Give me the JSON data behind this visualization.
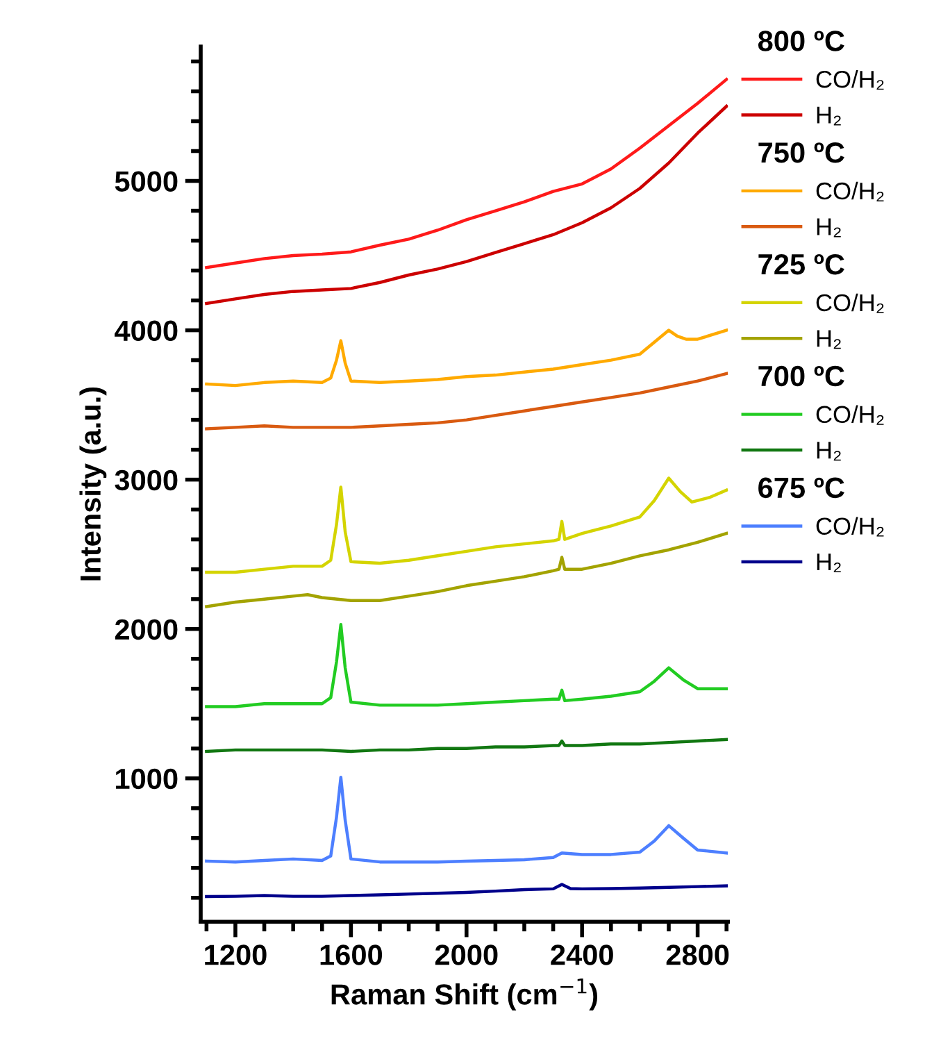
{
  "chart_data": {
    "type": "line",
    "xlabel": "Raman Shift (cm$^{−1}$)",
    "ylabel": "Intensity (a.u.)",
    "xlim": [
      1080,
      2905
    ],
    "ylim": [
      40,
      5900
    ],
    "xticks": [
      {
        "value": 1100,
        "label": null
      },
      1200,
      {
        "value": 1300,
        "label": null
      },
      {
        "value": 1400,
        "label": null
      },
      {
        "value": 1500,
        "label": null
      },
      1600,
      {
        "value": 1700,
        "label": null
      },
      {
        "value": 1800,
        "label": null
      },
      {
        "value": 1900,
        "label": null
      },
      2000,
      {
        "value": 2100,
        "label": null
      },
      {
        "value": 2200,
        "label": null
      },
      {
        "value": 2300,
        "label": null
      },
      2400,
      {
        "value": 2500,
        "label": null
      },
      {
        "value": 2600,
        "label": null
      },
      {
        "value": 2700,
        "label": null
      },
      2800,
      {
        "value": 2900,
        "label": null
      }
    ],
    "yticks": [
      {
        "value": 200,
        "label": null
      },
      {
        "value": 400,
        "label": null
      },
      {
        "value": 600,
        "label": null
      },
      {
        "value": 800,
        "label": null
      },
      1000,
      {
        "value": 1200,
        "label": null
      },
      {
        "value": 1400,
        "label": null
      },
      {
        "value": 1600,
        "label": null
      },
      {
        "value": 1800,
        "label": null
      },
      2000,
      {
        "value": 2200,
        "label": null
      },
      {
        "value": 2400,
        "label": null
      },
      {
        "value": 2600,
        "label": null
      },
      {
        "value": 2800,
        "label": null
      },
      3000,
      {
        "value": 3200,
        "label": null
      },
      {
        "value": 3400,
        "label": null
      },
      {
        "value": 3600,
        "label": null
      },
      {
        "value": 3800,
        "label": null
      },
      4000,
      {
        "value": 4200,
        "label": null
      },
      {
        "value": 4400,
        "label": null
      },
      {
        "value": 4600,
        "label": null
      },
      {
        "value": 4800,
        "label": null
      },
      5000,
      {
        "value": 5200,
        "label": null
      },
      {
        "value": 5400,
        "label": null
      },
      {
        "value": 5600,
        "label": null
      },
      {
        "value": 5800,
        "label": null
      }
    ],
    "grid": false,
    "legend": "right",
    "marker": "none",
    "line_style": "solid",
    "annotations": [
      "800 ºC",
      "750 ºC",
      "725 ºC",
      "700 ºC",
      "675 ºC"
    ],
    "series": [
      {
        "name": "CO/H₂",
        "color": "#ff1a1a",
        "x": [
          1100,
          1200,
          1300,
          1400,
          1500,
          1600,
          1700,
          1800,
          1900,
          2000,
          2100,
          2200,
          2300,
          2400,
          2500,
          2600,
          2700,
          2800,
          2900
        ],
        "values": [
          4420,
          4450,
          4480,
          4500,
          4510,
          4525,
          4570,
          4610,
          4670,
          4740,
          4800,
          4860,
          4930,
          4980,
          5080,
          5220,
          5370,
          5520,
          5680
        ]
      },
      {
        "name": "H₂",
        "color": "#cc0000",
        "x": [
          1100,
          1200,
          1300,
          1400,
          1500,
          1600,
          1700,
          1800,
          1900,
          2000,
          2100,
          2200,
          2300,
          2400,
          2500,
          2600,
          2700,
          2800,
          2900
        ],
        "values": [
          4180,
          4210,
          4240,
          4260,
          4270,
          4280,
          4320,
          4370,
          4410,
          4460,
          4520,
          4580,
          4640,
          4720,
          4820,
          4950,
          5120,
          5320,
          5500
        ]
      },
      {
        "name": "CO/H₂",
        "color": "#ffaa00",
        "x": [
          1100,
          1200,
          1300,
          1400,
          1500,
          1530,
          1550,
          1565,
          1580,
          1600,
          1700,
          1800,
          1900,
          2000,
          2100,
          2200,
          2300,
          2400,
          2500,
          2600,
          2650,
          2700,
          2730,
          2760,
          2800,
          2900
        ],
        "values": [
          3640,
          3630,
          3650,
          3660,
          3650,
          3680,
          3800,
          3930,
          3780,
          3660,
          3650,
          3660,
          3670,
          3690,
          3700,
          3720,
          3740,
          3770,
          3800,
          3840,
          3920,
          4000,
          3960,
          3940,
          3940,
          4000
        ]
      },
      {
        "name": "H₂",
        "color": "#d95a10",
        "x": [
          1100,
          1200,
          1300,
          1400,
          1500,
          1600,
          1700,
          1800,
          1900,
          2000,
          2100,
          2200,
          2300,
          2400,
          2500,
          2600,
          2700,
          2800,
          2900
        ],
        "values": [
          3340,
          3350,
          3360,
          3350,
          3350,
          3350,
          3360,
          3370,
          3380,
          3400,
          3430,
          3460,
          3490,
          3520,
          3550,
          3580,
          3620,
          3660,
          3710
        ]
      },
      {
        "name": "CO/H₂",
        "color": "#d4d400",
        "x": [
          1100,
          1200,
          1300,
          1400,
          1500,
          1530,
          1550,
          1565,
          1580,
          1600,
          1700,
          1800,
          1900,
          2000,
          2100,
          2200,
          2300,
          2320,
          2330,
          2340,
          2400,
          2500,
          2600,
          2650,
          2700,
          2740,
          2780,
          2840,
          2900
        ],
        "values": [
          2380,
          2380,
          2400,
          2420,
          2420,
          2460,
          2700,
          2950,
          2650,
          2450,
          2440,
          2460,
          2490,
          2520,
          2550,
          2570,
          2590,
          2600,
          2720,
          2600,
          2640,
          2690,
          2750,
          2860,
          3010,
          2920,
          2850,
          2880,
          2930
        ]
      },
      {
        "name": "H₂",
        "color": "#a3a300",
        "x": [
          1100,
          1200,
          1300,
          1400,
          1450,
          1500,
          1600,
          1700,
          1800,
          1900,
          2000,
          2100,
          2200,
          2300,
          2320,
          2330,
          2340,
          2400,
          2500,
          2600,
          2700,
          2800,
          2900
        ],
        "values": [
          2150,
          2180,
          2200,
          2220,
          2230,
          2210,
          2190,
          2190,
          2220,
          2250,
          2290,
          2320,
          2350,
          2390,
          2400,
          2480,
          2400,
          2400,
          2440,
          2490,
          2530,
          2580,
          2640
        ]
      },
      {
        "name": "CO/H₂",
        "color": "#22cc22",
        "x": [
          1100,
          1200,
          1300,
          1400,
          1500,
          1530,
          1550,
          1565,
          1580,
          1600,
          1700,
          1800,
          1900,
          2000,
          2100,
          2200,
          2300,
          2320,
          2330,
          2340,
          2400,
          2500,
          2600,
          2650,
          2700,
          2750,
          2800,
          2900
        ],
        "values": [
          1480,
          1480,
          1500,
          1500,
          1500,
          1540,
          1780,
          2030,
          1740,
          1510,
          1490,
          1490,
          1490,
          1500,
          1510,
          1520,
          1530,
          1530,
          1590,
          1520,
          1530,
          1550,
          1580,
          1650,
          1740,
          1660,
          1600,
          1600
        ]
      },
      {
        "name": "H₂",
        "color": "#117711",
        "x": [
          1100,
          1200,
          1300,
          1400,
          1500,
          1600,
          1700,
          1800,
          1900,
          2000,
          2100,
          2200,
          2300,
          2320,
          2330,
          2340,
          2400,
          2500,
          2600,
          2700,
          2800,
          2900
        ],
        "values": [
          1180,
          1190,
          1190,
          1190,
          1190,
          1180,
          1190,
          1190,
          1200,
          1200,
          1210,
          1210,
          1220,
          1220,
          1250,
          1220,
          1220,
          1230,
          1230,
          1240,
          1250,
          1260
        ]
      },
      {
        "name": "CO/H₂",
        "color": "#4d7fff",
        "x": [
          1100,
          1200,
          1300,
          1400,
          1500,
          1530,
          1550,
          1565,
          1580,
          1600,
          1700,
          1800,
          1900,
          2000,
          2100,
          2200,
          2300,
          2330,
          2400,
          2500,
          2600,
          2650,
          2700,
          2750,
          2800,
          2900
        ],
        "values": [
          446,
          440,
          450,
          460,
          450,
          480,
          740,
          1007,
          720,
          460,
          440,
          440,
          440,
          445,
          450,
          455,
          470,
          500,
          490,
          490,
          506,
          580,
          683,
          600,
          520,
          500
        ]
      },
      {
        "name": "H₂",
        "color": "#00008b",
        "x": [
          1100,
          1200,
          1300,
          1400,
          1500,
          1600,
          1700,
          1800,
          1900,
          2000,
          2100,
          2200,
          2300,
          2330,
          2360,
          2400,
          2500,
          2600,
          2700,
          2800,
          2900
        ],
        "values": [
          208,
          210,
          215,
          210,
          210,
          215,
          220,
          225,
          230,
          236,
          245,
          255,
          260,
          290,
          262,
          260,
          262,
          265,
          270,
          275,
          280
        ]
      }
    ]
  }
}
